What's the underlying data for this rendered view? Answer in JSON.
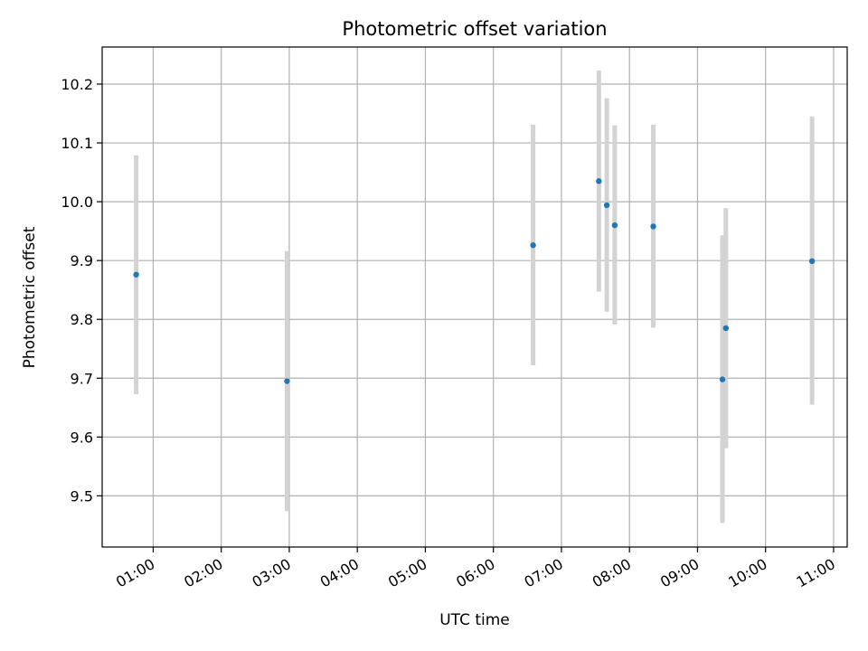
{
  "chart_data": {
    "type": "scatter",
    "title": "Photometric offset variation",
    "xlabel": "UTC time",
    "ylabel": "Photometric offset",
    "x_tick_labels": [
      "01:00",
      "02:00",
      "03:00",
      "04:00",
      "05:00",
      "06:00",
      "07:00",
      "08:00",
      "09:00",
      "10:00",
      "11:00"
    ],
    "x_ticks_hours": [
      1,
      2,
      3,
      4,
      5,
      6,
      7,
      8,
      9,
      10,
      11
    ],
    "y_tick_labels": [
      "9.5",
      "9.6",
      "9.7",
      "9.8",
      "9.9",
      "10.0",
      "10.1",
      "10.2"
    ],
    "y_ticks": [
      9.5,
      9.6,
      9.7,
      9.8,
      9.9,
      10.0,
      10.1,
      10.2
    ],
    "xlim_hours": [
      0.25,
      11.2
    ],
    "ylim": [
      9.413,
      10.263
    ],
    "grid": true,
    "series": [
      {
        "marker_color": "#1f77b4",
        "errorbar_color": "#d3d3d3",
        "points": [
          {
            "x": "00:45",
            "y": 9.876,
            "y_err_low": 9.673,
            "y_err_high": 10.079
          },
          {
            "x": "02:58",
            "y": 9.695,
            "y_err_low": 9.474,
            "y_err_high": 9.916
          },
          {
            "x": "06:35",
            "y": 9.926,
            "y_err_low": 9.722,
            "y_err_high": 10.131
          },
          {
            "x": "07:33",
            "y": 10.035,
            "y_err_low": 9.847,
            "y_err_high": 10.223
          },
          {
            "x": "07:40",
            "y": 9.994,
            "y_err_low": 9.813,
            "y_err_high": 10.176
          },
          {
            "x": "07:47",
            "y": 9.96,
            "y_err_low": 9.791,
            "y_err_high": 10.13
          },
          {
            "x": "08:21",
            "y": 9.958,
            "y_err_low": 9.786,
            "y_err_high": 10.131
          },
          {
            "x": "09:22",
            "y": 9.698,
            "y_err_low": 9.454,
            "y_err_high": 9.943
          },
          {
            "x": "09:25",
            "y": 9.785,
            "y_err_low": 9.581,
            "y_err_high": 9.989
          },
          {
            "x": "10:41",
            "y": 9.899,
            "y_err_low": 9.655,
            "y_err_high": 10.145
          }
        ]
      }
    ]
  }
}
